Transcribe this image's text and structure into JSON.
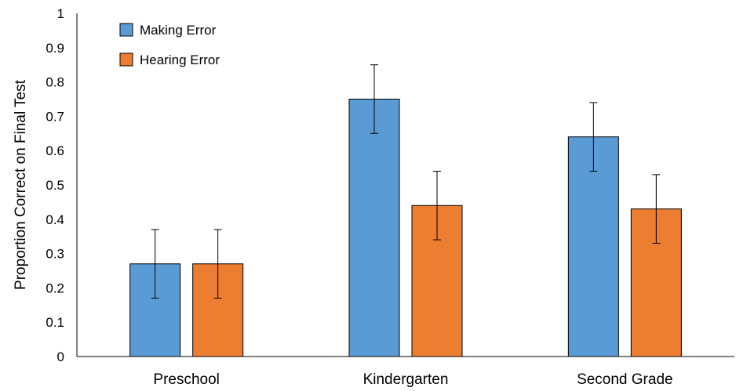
{
  "chart_data": {
    "type": "bar",
    "title": "",
    "xlabel": "",
    "ylabel": "Proportion Correct on Final Test",
    "ylim": [
      0,
      1
    ],
    "yticks": [
      "0",
      "0.1",
      "0.2",
      "0.3",
      "0.4",
      "0.5",
      "0.6",
      "0.7",
      "0.8",
      "0.9",
      "1"
    ],
    "categories": [
      "Preschool",
      "Kindergarten",
      "Second Grade"
    ],
    "series": [
      {
        "name": "Making Error",
        "color": "#5B9BD5",
        "values": [
          0.27,
          0.75,
          0.64
        ],
        "errors": [
          0.1,
          0.1,
          0.1
        ]
      },
      {
        "name": "Hearing Error",
        "color": "#ED7D31",
        "values": [
          0.27,
          0.44,
          0.43
        ],
        "errors": [
          0.1,
          0.1,
          0.1
        ]
      }
    ],
    "grid": false,
    "legend_position": "top-left"
  }
}
